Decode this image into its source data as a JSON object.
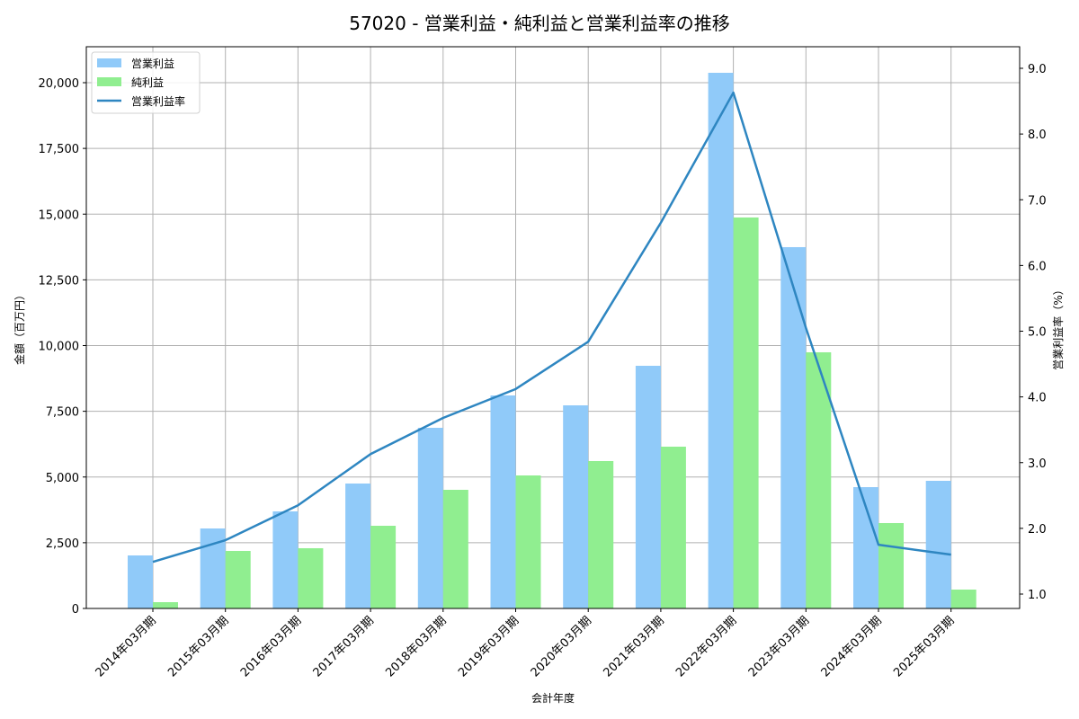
{
  "chart_data": {
    "type": "bar+line",
    "title": "57020 - 営業利益・純利益と営業利益率の推移",
    "xlabel": "会計年度",
    "ylabel": "金額（百万円）",
    "y2label": "営業利益率（%）",
    "categories": [
      "2014年03月期",
      "2015年03月期",
      "2016年03月期",
      "2017年03月期",
      "2018年03月期",
      "2019年03月期",
      "2020年03月期",
      "2021年03月期",
      "2022年03月期",
      "2023年03月期",
      "2024年03月期",
      "2025年03月期"
    ],
    "series": [
      {
        "name": "営業利益",
        "type": "bar",
        "axis": "left",
        "color": "#90caf9",
        "values": [
          2017,
          3043,
          3692,
          4752,
          6872,
          8103,
          7726,
          9231,
          20376,
          13744,
          4615,
          4855
        ]
      },
      {
        "name": "純利益",
        "type": "bar",
        "axis": "left",
        "color": "#90ee90",
        "values": [
          239,
          2188,
          2291,
          3145,
          4513,
          5060,
          5607,
          6154,
          14872,
          9744,
          3248,
          718
        ]
      },
      {
        "name": "営業利益率",
        "type": "line",
        "axis": "right",
        "color": "#2e86c1",
        "values": [
          1.49,
          1.82,
          2.35,
          3.13,
          3.68,
          4.12,
          4.84,
          6.65,
          8.63,
          5.05,
          1.75,
          1.6
        ]
      }
    ],
    "ylim": [
      0,
      21400
    ],
    "y2lim": [
      0.78,
      9.32
    ],
    "yticks": [
      0,
      2500,
      5000,
      7500,
      10000,
      12500,
      15000,
      17500,
      20000
    ],
    "ytick_labels": [
      "0",
      "2,500",
      "5,000",
      "7,500",
      "10,000",
      "12,500",
      "15,000",
      "17,500",
      "20,000"
    ],
    "y2ticks": [
      1.0,
      2.0,
      3.0,
      4.0,
      5.0,
      6.0,
      7.0,
      8.0,
      9.0
    ],
    "y2tick_labels": [
      "1.0",
      "2.0",
      "3.0",
      "4.0",
      "5.0",
      "6.0",
      "7.0",
      "8.0",
      "9.0"
    ],
    "grid": true,
    "legend_position": "upper left"
  }
}
